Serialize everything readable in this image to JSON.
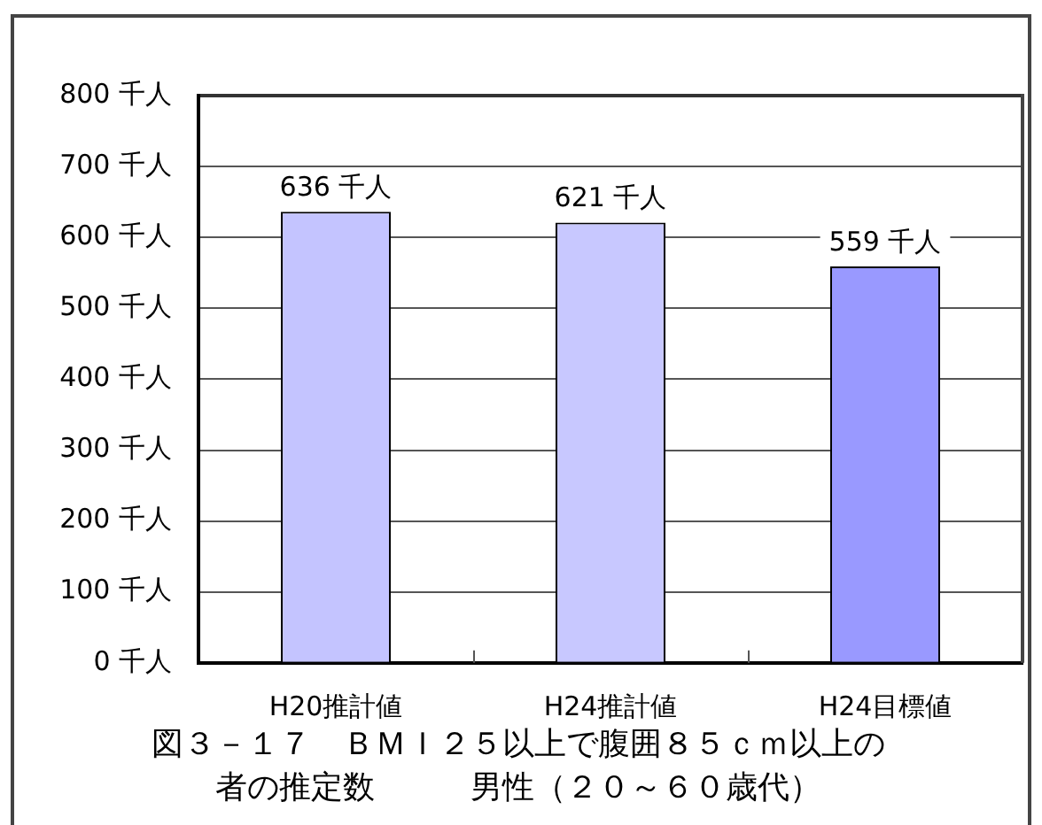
{
  "chart_data": {
    "type": "bar",
    "title": "図３－１７　ＢＭＩ２５以上で腹囲８５ｃｍ以上の者の推定数　　　男性（２０～６０歳代）",
    "categories": [
      "H20推計値",
      "H24推計値",
      "H24目標値"
    ],
    "values": [
      636,
      621,
      559
    ],
    "value_labels": [
      "636 千人",
      "621 千人",
      "559 千人"
    ],
    "colors": [
      "#c4c4ff",
      "#c8c8ff",
      "#9999ff"
    ],
    "ylim": [
      0,
      800
    ],
    "yticks": [
      {
        "value": 0,
        "label": "0 千人"
      },
      {
        "value": 100,
        "label": "100 千人"
      },
      {
        "value": 200,
        "label": "200 千人"
      },
      {
        "value": 300,
        "label": "300 千人"
      },
      {
        "value": 400,
        "label": "400 千人"
      },
      {
        "value": 500,
        "label": "500 千人"
      },
      {
        "value": 600,
        "label": "600 千人"
      },
      {
        "value": 700,
        "label": "700 千人"
      },
      {
        "value": 800,
        "label": "800 千人"
      }
    ],
    "grid": "y"
  }
}
